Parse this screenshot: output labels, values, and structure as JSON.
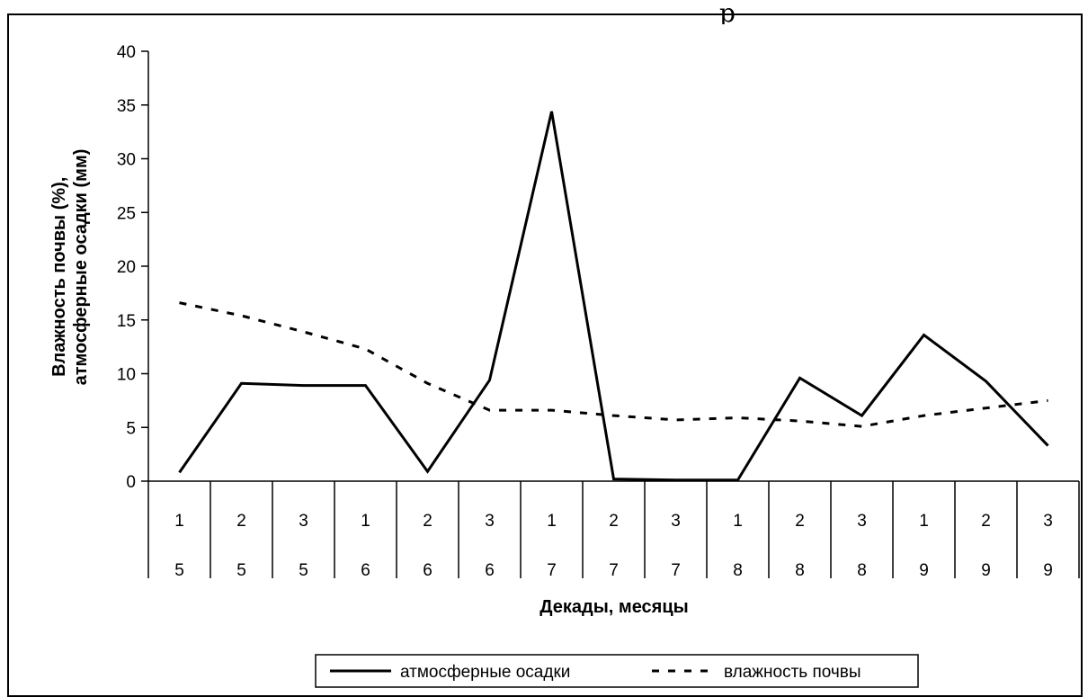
{
  "top_fragment": "р",
  "chart_data": {
    "type": "line",
    "title": "",
    "categories": [
      [
        "1",
        "5"
      ],
      [
        "2",
        "5"
      ],
      [
        "3",
        "5"
      ],
      [
        "1",
        "6"
      ],
      [
        "2",
        "6"
      ],
      [
        "3",
        "6"
      ],
      [
        "1",
        "7"
      ],
      [
        "2",
        "7"
      ],
      [
        "3",
        "7"
      ],
      [
        "1",
        "8"
      ],
      [
        "2",
        "8"
      ],
      [
        "3",
        "8"
      ],
      [
        "1",
        "9"
      ],
      [
        "2",
        "9"
      ],
      [
        "3",
        "9"
      ]
    ],
    "xlabel": "Декады, месяцы",
    "ylabel_lines": [
      "Влажность почвы (%),",
      "атмосферные осадки (мм)"
    ],
    "ylim": [
      0,
      40
    ],
    "yticks": [
      0,
      5,
      10,
      15,
      20,
      25,
      30,
      35,
      40
    ],
    "grid": false,
    "legend_position": "bottom",
    "series": [
      {
        "name": "атмосферные осадки",
        "style": "solid",
        "color": "#000000",
        "values": [
          0.8,
          9.1,
          8.9,
          8.9,
          0.9,
          9.4,
          34.4,
          0.2,
          0.1,
          0.1,
          9.6,
          6.1,
          13.6,
          9.3,
          3.3
        ]
      },
      {
        "name": "влажность почвы",
        "style": "dashed",
        "color": "#000000",
        "values": [
          16.6,
          15.4,
          13.9,
          12.3,
          9.1,
          6.6,
          6.6,
          6.1,
          5.7,
          5.9,
          5.6,
          5.1,
          6.1,
          6.8,
          7.5
        ]
      }
    ]
  }
}
